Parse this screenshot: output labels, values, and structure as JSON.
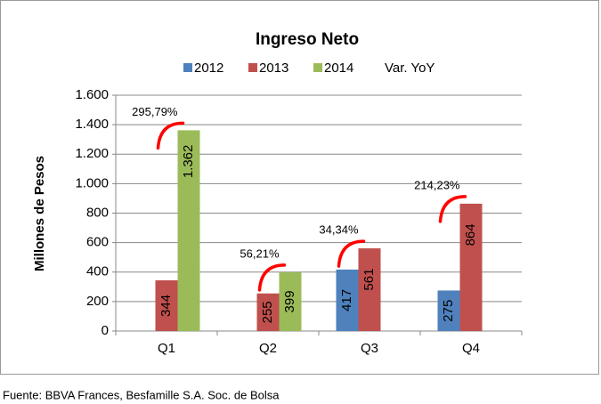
{
  "chart_data": {
    "type": "bar",
    "title": "Ingreso Neto",
    "y_label": "Millones de Pesos",
    "source": "Fuente: BBVA Frances, Besfamille S.A. Soc. de Bolsa",
    "categories": [
      "Q1",
      "Q2",
      "Q3",
      "Q4"
    ],
    "series": [
      {
        "name": "2012",
        "color": "#4f81bd",
        "values": [
          null,
          null,
          417,
          275
        ],
        "value_labels": [
          null,
          null,
          "417",
          "275"
        ]
      },
      {
        "name": "2013",
        "color": "#c0504d",
        "values": [
          344,
          255,
          561,
          864
        ],
        "value_labels": [
          "344",
          "255",
          "561",
          "864"
        ]
      },
      {
        "name": "2014",
        "color": "#9bbb59",
        "values": [
          1362,
          399,
          null,
          null
        ],
        "value_labels": [
          "1.362",
          "399",
          null,
          null
        ]
      }
    ],
    "yoy": {
      "name": "Var. YoY",
      "color": "#ff0000",
      "values": [
        295.79,
        56.21,
        34.34,
        214.23
      ],
      "value_labels": [
        "295,79%",
        "56,21%",
        "34,34%",
        "214,23%"
      ]
    },
    "ylim": [
      0,
      1600
    ],
    "yticks": [
      0,
      200,
      400,
      600,
      800,
      {
        "value": 1000,
        "label": "1.000"
      },
      {
        "value": 1200,
        "label": "1.200"
      },
      {
        "value": 1400,
        "label": "1.400"
      },
      {
        "value": 1600,
        "label": "1.600"
      }
    ],
    "grid": true
  }
}
